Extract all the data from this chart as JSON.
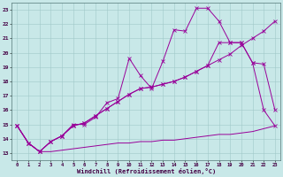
{
  "background_color": "#c8e8e8",
  "grid_color": "#a0c8c8",
  "line_color": "#990099",
  "xlabel": "Windchill (Refroidissement éolien,°C)",
  "xlim": [
    -0.5,
    23.5
  ],
  "ylim": [
    12.5,
    23.5
  ],
  "xticks": [
    0,
    1,
    2,
    3,
    4,
    5,
    6,
    7,
    8,
    9,
    10,
    11,
    12,
    13,
    14,
    15,
    16,
    17,
    18,
    19,
    20,
    21,
    22,
    23
  ],
  "yticks": [
    13,
    14,
    15,
    16,
    17,
    18,
    19,
    20,
    21,
    22,
    23
  ],
  "jagged_x": [
    0,
    1,
    2,
    3,
    4,
    5,
    6,
    7,
    8,
    9,
    10,
    11,
    12,
    13,
    14,
    15,
    16,
    17,
    18,
    19,
    20,
    21,
    22,
    23
  ],
  "jagged_y": [
    14.9,
    13.7,
    13.1,
    13.8,
    14.2,
    15.0,
    15.0,
    15.5,
    16.5,
    16.8,
    19.6,
    18.4,
    17.5,
    19.4,
    21.6,
    21.5,
    23.1,
    23.1,
    22.2,
    20.7,
    20.7,
    19.3,
    19.2,
    16.0
  ],
  "diag_x": [
    0,
    1,
    2,
    3,
    4,
    5,
    6,
    7,
    8,
    9,
    10,
    11,
    12,
    13,
    14,
    15,
    16,
    17,
    18,
    19,
    20,
    21,
    22,
    23
  ],
  "diag_y": [
    14.9,
    13.7,
    13.1,
    13.8,
    14.2,
    14.9,
    15.1,
    15.6,
    16.1,
    16.6,
    17.1,
    17.5,
    17.6,
    17.8,
    18.0,
    18.3,
    18.7,
    19.1,
    19.5,
    19.9,
    20.5,
    21.0,
    21.5,
    22.2
  ],
  "mid_x": [
    0,
    1,
    2,
    3,
    4,
    5,
    6,
    7,
    8,
    9,
    10,
    11,
    12,
    13,
    14,
    15,
    16,
    17,
    18,
    19,
    20,
    21,
    22,
    23
  ],
  "mid_y": [
    14.9,
    13.7,
    13.1,
    13.8,
    14.2,
    14.9,
    15.1,
    15.6,
    16.1,
    16.6,
    17.1,
    17.5,
    17.6,
    17.8,
    18.0,
    18.3,
    18.7,
    19.1,
    20.7,
    20.7,
    20.7,
    19.3,
    16.0,
    14.9
  ],
  "flat_x": [
    0,
    1,
    2,
    3,
    4,
    5,
    6,
    7,
    8,
    9,
    10,
    11,
    12,
    13,
    14,
    15,
    16,
    17,
    18,
    19,
    20,
    21,
    22,
    23
  ],
  "flat_y": [
    14.9,
    13.7,
    13.1,
    13.1,
    13.2,
    13.3,
    13.4,
    13.5,
    13.6,
    13.7,
    13.7,
    13.8,
    13.8,
    13.9,
    13.9,
    14.0,
    14.1,
    14.2,
    14.3,
    14.3,
    14.4,
    14.5,
    14.7,
    14.9
  ]
}
